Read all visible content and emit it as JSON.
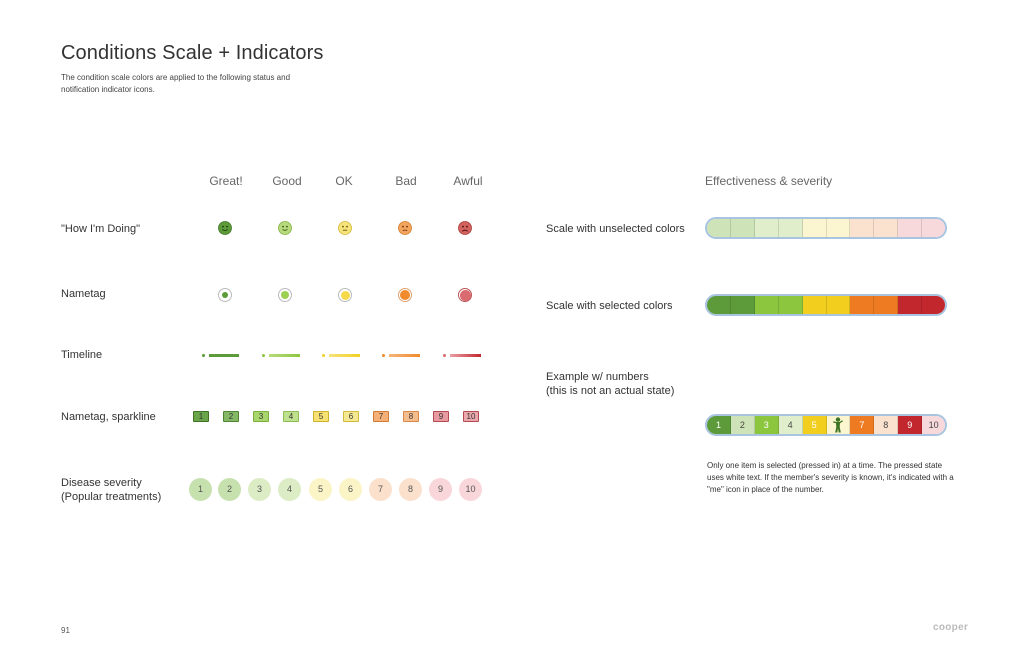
{
  "title": "Conditions Scale + Indicators",
  "subtitle": "The condition scale colors are applied to the following status and notification indicator icons.",
  "columns": [
    "Great!",
    "Good",
    "OK",
    "Bad",
    "Awful"
  ],
  "rows": {
    "how": "\"How I'm Doing\"",
    "nametag": "Nametag",
    "timeline": "Timeline",
    "sparkline": "Nametag, sparkline",
    "severity_line1": "Disease severity",
    "severity_line2": "(Popular treatments)"
  },
  "condition_colors": [
    "#5d9b3a",
    "#8cc63f",
    "#f2d024",
    "#f08a2c",
    "#c9424a"
  ],
  "numbers": [
    "1",
    "2",
    "3",
    "4",
    "5",
    "6",
    "7",
    "8",
    "9",
    "10"
  ],
  "right": {
    "heading": "Effectiveness & severity",
    "unselected_label": "Scale with unselected colors",
    "selected_label": "Scale with selected colors",
    "example_line1": "Example w/ numbers",
    "example_line2": "(this is not an actual state)",
    "example_numbers": [
      "1",
      "2",
      "3",
      "4",
      "5",
      "me",
      "7",
      "8",
      "9",
      "10"
    ],
    "note": "Only one item is selected (pressed in) at a time. The pressed state uses white text. If the member's severity is known, it's indicated with a \"me\" icon in place of the number."
  },
  "unselected_colors": [
    "#cfe3b8",
    "#cfe3b8",
    "#e1eecb",
    "#e1eecb",
    "#fbf6cf",
    "#fbf6cf",
    "#fbe2cf",
    "#fbe2cf",
    "#f7d9dc",
    "#f7d9dc"
  ],
  "selected_colors": [
    "#5d9b3a",
    "#5d9b3a",
    "#8cc63f",
    "#8cc63f",
    "#f2cf1f",
    "#f2cf1f",
    "#ee7b22",
    "#ee7b22",
    "#c1272d",
    "#c1272d"
  ],
  "page_number": "91",
  "brand": "cooper"
}
